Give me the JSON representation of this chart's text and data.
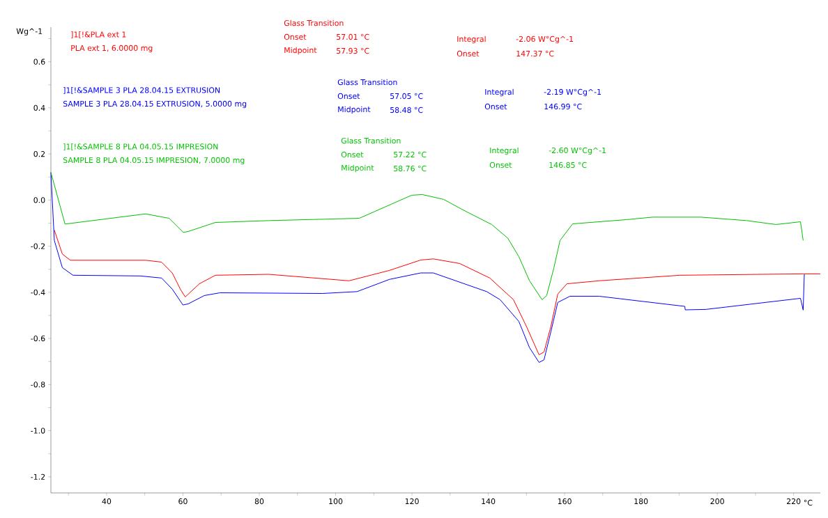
{
  "chart_data": {
    "type": "line",
    "xlabel": "°C",
    "ylabel": "Wg^-1",
    "xlim": [
      25.4,
      227
    ],
    "ylim": [
      -1.27,
      0.75
    ],
    "xticks": [
      {
        "value": 30,
        "label": null
      },
      40,
      {
        "value": 50,
        "label": null
      },
      60,
      {
        "value": 70,
        "label": null
      },
      80,
      {
        "value": 90,
        "label": null
      },
      100,
      {
        "value": 110,
        "label": null
      },
      120,
      {
        "value": 130,
        "label": null
      },
      140,
      {
        "value": 150,
        "label": null
      },
      160,
      {
        "value": 170,
        "label": null
      },
      180,
      {
        "value": 190,
        "label": null
      },
      200,
      {
        "value": 210,
        "label": null
      },
      220
    ],
    "yticks": [
      {
        "value": -1.2,
        "label": "-1.2"
      },
      {
        "value": -1.1,
        "label": null
      },
      {
        "value": -1.0,
        "label": "-1.0"
      },
      {
        "value": -0.9,
        "label": null
      },
      -0.8,
      {
        "value": -0.7,
        "label": null
      },
      -0.6,
      {
        "value": -0.5,
        "label": null
      },
      -0.4,
      {
        "value": -0.3,
        "label": null
      },
      -0.2,
      {
        "value": -0.1,
        "label": null
      },
      {
        "value": 0,
        "label": "0.0"
      },
      {
        "value": 0.1,
        "label": null
      },
      0.2,
      {
        "value": 0.3,
        "label": null
      },
      0.4,
      {
        "value": 0.5,
        "label": null
      },
      0.6,
      {
        "value": 0.7,
        "label": null
      }
    ],
    "marker": "none",
    "series": [
      {
        "color": "#ff0000",
        "x": [
          26.3,
          28.4,
          30.5,
          50.2,
          54.4,
          57.2,
          59.3,
          60.6,
          64.3,
          68.5,
          82.5,
          103.5,
          114.1,
          122.3,
          125.6,
          132.5,
          140.4,
          146.6,
          150.0,
          153.3,
          154.6,
          156.4,
          158.2,
          160.6,
          169.0,
          190.2,
          222.5,
          227.0
        ],
        "values": [
          -0.13,
          -0.234,
          -0.261,
          -0.261,
          -0.269,
          -0.316,
          -0.386,
          -0.42,
          -0.363,
          -0.326,
          -0.322,
          -0.35,
          -0.305,
          -0.26,
          -0.255,
          -0.275,
          -0.338,
          -0.432,
          -0.548,
          -0.671,
          -0.659,
          -0.548,
          -0.408,
          -0.363,
          -0.35,
          -0.326,
          -0.32,
          -0.32
        ]
      },
      {
        "color": "#0000ff",
        "x": [
          25.4,
          26.3,
          28.4,
          31.2,
          48.8,
          54.4,
          57.2,
          60.0,
          61.4,
          65.6,
          69.7,
          96.5,
          105.6,
          114.1,
          122.3,
          125.6,
          139.6,
          143.1,
          148.0,
          150.8,
          153.3,
          154.6,
          156.4,
          158.2,
          161.4,
          169.0,
          191.5,
          191.6,
          197.1,
          221.8,
          222.5,
          222.8
        ],
        "values": [
          0.12,
          -0.175,
          -0.293,
          -0.326,
          -0.329,
          -0.338,
          -0.386,
          -0.455,
          -0.45,
          -0.414,
          -0.402,
          -0.405,
          -0.397,
          -0.344,
          -0.316,
          -0.316,
          -0.397,
          -0.432,
          -0.526,
          -0.64,
          -0.704,
          -0.693,
          -0.571,
          -0.444,
          -0.417,
          -0.417,
          -0.461,
          -0.476,
          -0.474,
          -0.426,
          -0.477,
          -0.322
        ]
      },
      {
        "color": "#00c000",
        "x": [
          25.4,
          29.1,
          50.2,
          56.4,
          60.1,
          61.4,
          68.5,
          82.5,
          106.2,
          119.9,
          122.7,
          128.3,
          134.0,
          140.9,
          145.1,
          148.0,
          150.8,
          154.1,
          155.3,
          157.2,
          158.8,
          162.1,
          176.1,
          183.1,
          195.7,
          207.7,
          215.4,
          221.8,
          222.5
        ],
        "values": [
          0.12,
          -0.104,
          -0.06,
          -0.079,
          -0.14,
          -0.136,
          -0.097,
          -0.089,
          -0.079,
          0.021,
          0.024,
          0.003,
          -0.048,
          -0.106,
          -0.165,
          -0.245,
          -0.35,
          -0.432,
          -0.414,
          -0.293,
          -0.175,
          -0.103,
          -0.085,
          -0.074,
          -0.074,
          -0.089,
          -0.106,
          -0.094,
          -0.175
        ]
      }
    ],
    "annotations": [
      "]1[!&PLA ext 1",
      "PLA ext 1, 6.0000 mg",
      "Glass Transition",
      "Onset",
      "57.01 °C",
      "Midpoint",
      "57.93 °C",
      "Integral",
      "-2.06 W°Cg^-1",
      "Onset",
      "147.37 °C",
      "]1[!&SAMPLE 3 PLA 28.04.15 EXTRUSION",
      "SAMPLE 3 PLA 28.04.15 EXTRUSION, 5.0000 mg",
      "Glass Transition",
      "Onset",
      "57.05 °C",
      "Midpoint",
      "58.48 °C",
      "Integral",
      "-2.19 W°Cg^-1",
      "Onset",
      "146.99 °C",
      "]1[!&SAMPLE 8 PLA 04.05.15 IMPRESION",
      "SAMPLE 8 PLA 04.05.15 IMPRESION, 7.0000 mg",
      "Glass Transition",
      "Onset",
      "57.22 °C",
      "Midpoint",
      "58.76 °C",
      "Integral",
      "-2.60 W°Cg^-1",
      "Onset",
      "146.85 °C"
    ]
  }
}
